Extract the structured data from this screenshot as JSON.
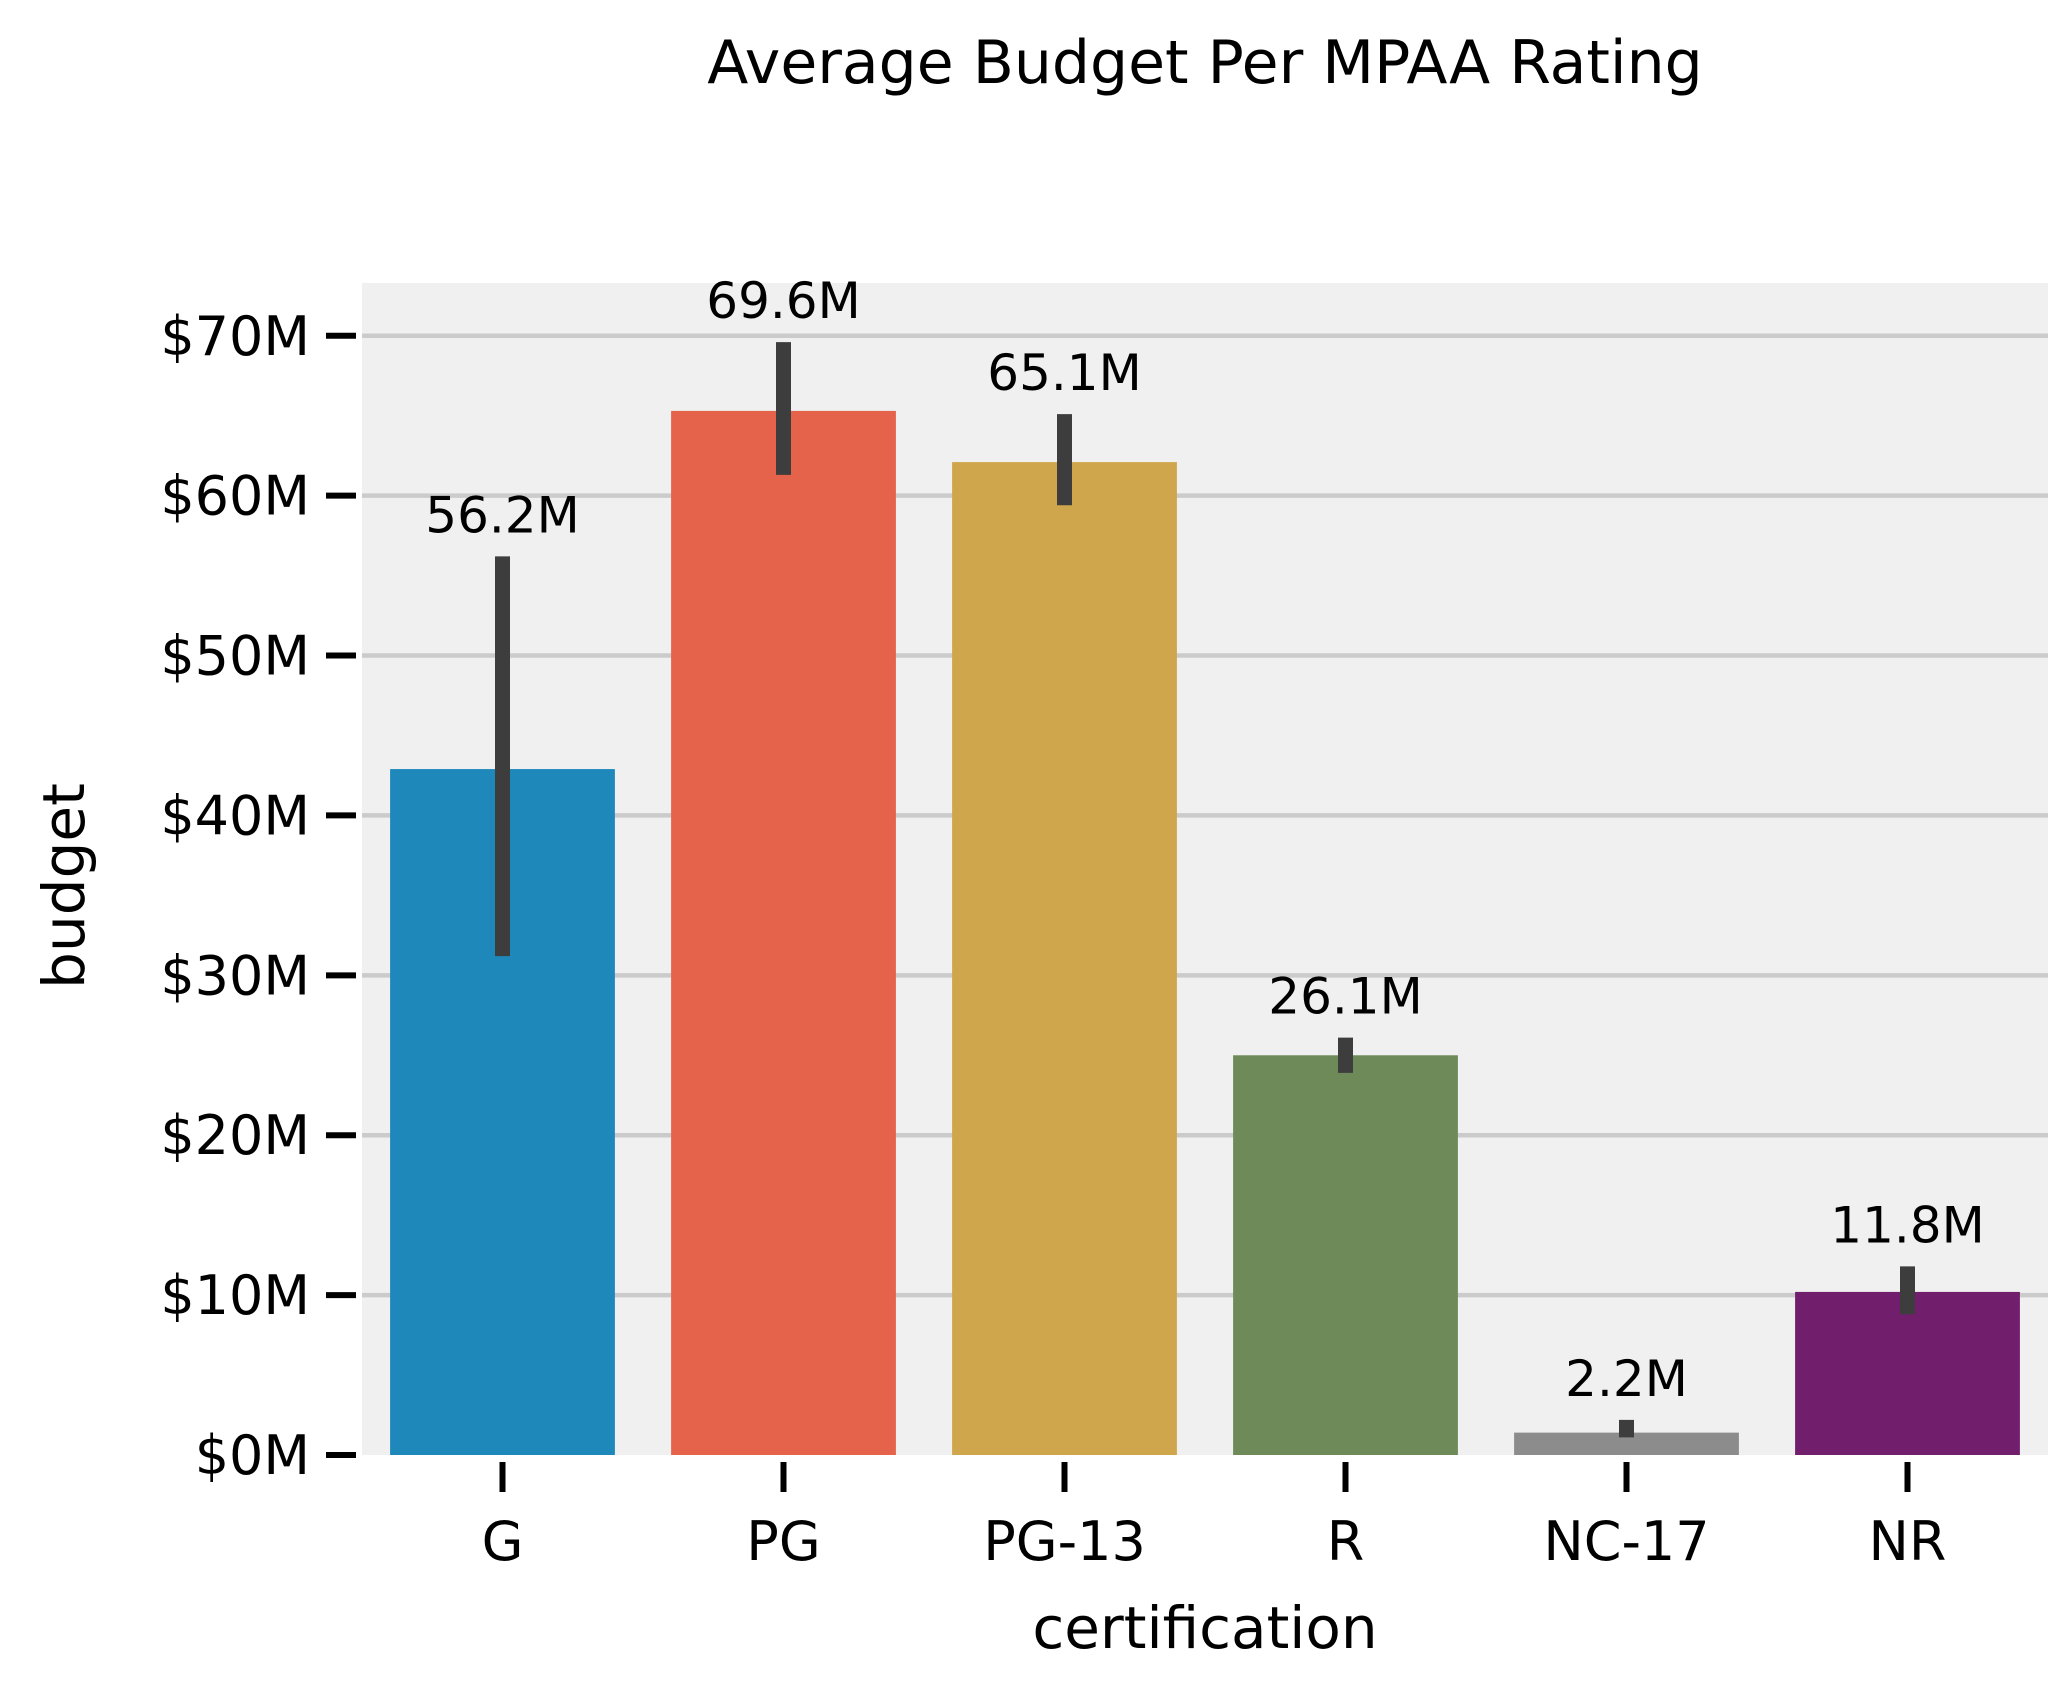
{
  "chart_data": {
    "type": "bar",
    "title": "Average Budget Per MPAA Rating",
    "xlabel": "certification",
    "ylabel": "budget",
    "categories": [
      "G",
      "PG",
      "PG-13",
      "R",
      "NC-17",
      "NR"
    ],
    "values": [
      42.9,
      65.3,
      62.1,
      25.0,
      1.4,
      10.2
    ],
    "error_low": [
      31.2,
      61.3,
      59.4,
      23.9,
      1.1,
      8.8
    ],
    "error_high": [
      56.2,
      69.6,
      65.1,
      26.1,
      2.2,
      11.8
    ],
    "data_labels": [
      "56.2M",
      "69.6M",
      "65.1M",
      "26.1M",
      "2.2M",
      "11.8M"
    ],
    "colors": [
      "#1f88bb",
      "#e5624b",
      "#cfa64c",
      "#6e8a59",
      "#8c8c8c",
      "#711f6c"
    ],
    "yticks": [
      0,
      10,
      20,
      30,
      40,
      50,
      60,
      70
    ],
    "ytick_labels": [
      "$0M",
      "$10M",
      "$20M",
      "$30M",
      "$40M",
      "$50M",
      "$60M",
      "$70M"
    ],
    "ylim": [
      0,
      73.3
    ],
    "grid": true,
    "background": "#f0f0f0",
    "grid_color": "#cbcbcb",
    "error_color": "#3d3d3d"
  }
}
